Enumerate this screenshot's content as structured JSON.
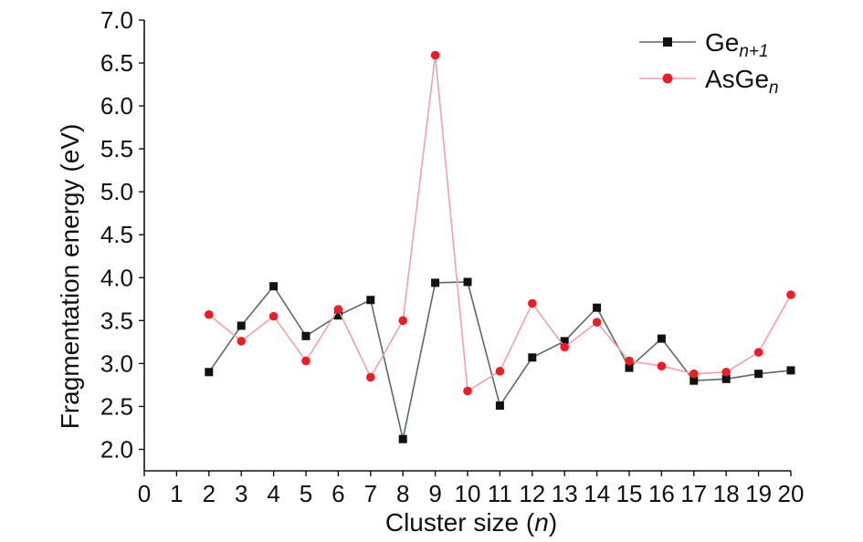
{
  "chart_data": {
    "type": "line",
    "xlabel": {
      "main": "Cluster size (",
      "var": "n",
      "end": ")"
    },
    "ylabel": "Fragmentation energy (eV)",
    "xlim": [
      0,
      20
    ],
    "ylim": [
      1.75,
      7.0
    ],
    "xticks": [
      "0",
      "1",
      "2",
      "3",
      "4",
      "5",
      "6",
      "7",
      "8",
      "9",
      "10",
      "11",
      "12",
      "13",
      "14",
      "15",
      "16",
      "17",
      "18",
      "19",
      "20"
    ],
    "yticks": [
      "2.0",
      "2.5",
      "3.0",
      "3.5",
      "4.0",
      "4.5",
      "5.0",
      "5.5",
      "6.0",
      "6.5",
      "7.0"
    ],
    "ytick_values": [
      2.0,
      2.5,
      3.0,
      3.5,
      4.0,
      4.5,
      5.0,
      5.5,
      6.0,
      6.5,
      7.0
    ],
    "grid": false,
    "legend_position": "top-right",
    "x": [
      2,
      3,
      4,
      5,
      6,
      7,
      8,
      9,
      10,
      11,
      12,
      13,
      14,
      15,
      16,
      17,
      18,
      19,
      20
    ],
    "series": [
      {
        "name": "Ge",
        "name_sub": "n+1",
        "color": "#111111",
        "line_color": "#5a6a6a",
        "marker": "square",
        "values": [
          2.9,
          3.44,
          3.9,
          3.32,
          3.56,
          3.74,
          2.12,
          3.94,
          3.95,
          2.51,
          3.07,
          3.26,
          3.65,
          2.95,
          3.29,
          2.8,
          2.82,
          2.88,
          2.92
        ]
      },
      {
        "name": "AsGe",
        "name_sub": "n",
        "color": "#ee1c24",
        "line_color": "#f4a0a8",
        "marker": "circle",
        "values": [
          3.57,
          3.26,
          3.55,
          3.03,
          3.63,
          2.84,
          3.5,
          6.59,
          2.68,
          2.91,
          3.7,
          3.19,
          3.48,
          3.03,
          2.97,
          2.88,
          2.9,
          3.13,
          3.8
        ]
      }
    ]
  }
}
